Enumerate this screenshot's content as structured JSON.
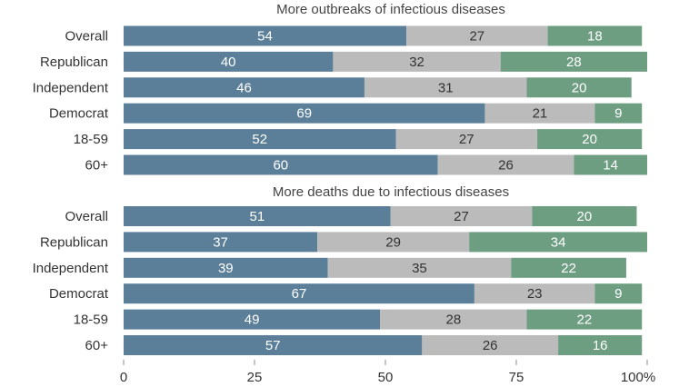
{
  "colors": {
    "series_1": "#5b7f99",
    "series_2": "#bbbbbb",
    "series_3": "#6e9e82"
  },
  "chart_data": [
    {
      "type": "bar",
      "orientation": "horizontal",
      "stacked": true,
      "title": "More outbreaks of infectious diseases",
      "categories": [
        "Overall",
        "Republican",
        "Independent",
        "Democrat",
        "18-59",
        "60+"
      ],
      "series": [
        {
          "values": [
            54,
            40,
            46,
            69,
            52,
            60
          ]
        },
        {
          "values": [
            27,
            32,
            31,
            21,
            27,
            26
          ]
        },
        {
          "values": [
            18,
            28,
            20,
            9,
            20,
            14
          ]
        }
      ]
    },
    {
      "type": "bar",
      "orientation": "horizontal",
      "stacked": true,
      "title": "More deaths due to infectious diseases",
      "categories": [
        "Overall",
        "Republican",
        "Independent",
        "Democrat",
        "18-59",
        "60+"
      ],
      "series": [
        {
          "values": [
            51,
            37,
            39,
            67,
            49,
            57
          ]
        },
        {
          "values": [
            27,
            29,
            35,
            23,
            28,
            26
          ]
        },
        {
          "values": [
            20,
            34,
            22,
            9,
            22,
            16
          ]
        }
      ]
    }
  ],
  "x_axis": {
    "range": [
      0,
      100
    ],
    "ticks": [
      "0",
      "25",
      "50",
      "75",
      "100%"
    ]
  }
}
